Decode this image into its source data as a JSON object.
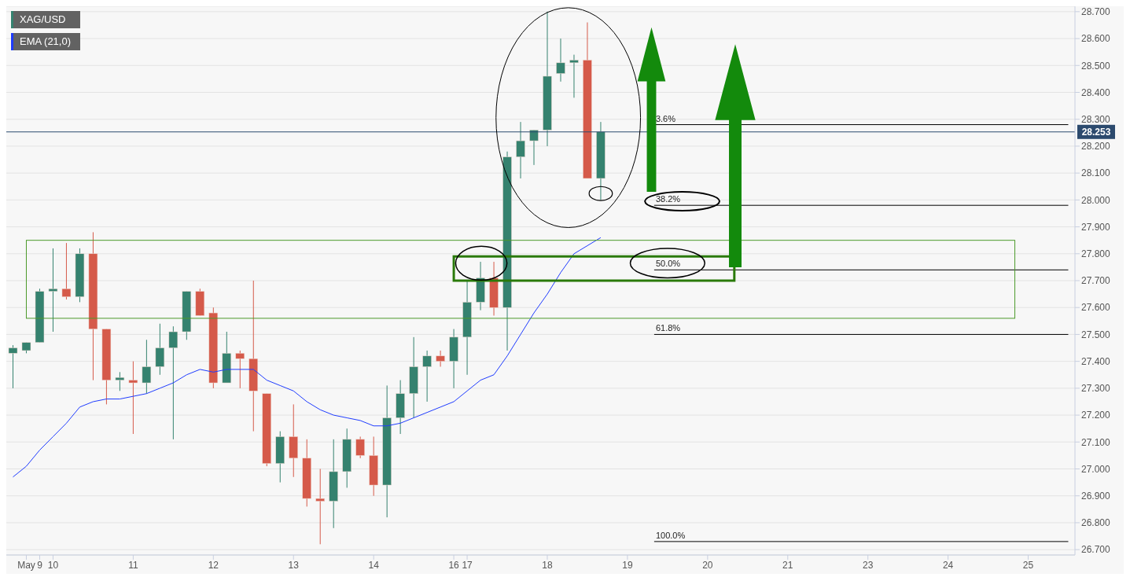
{
  "chart_data": {
    "type": "candlestick",
    "categories": [
      null,
      "May",
      "9",
      "10",
      null,
      null,
      null,
      null,
      null,
      "11",
      null,
      null,
      null,
      null,
      null,
      "12",
      null,
      null,
      null,
      null,
      null,
      "13",
      null,
      null,
      null,
      null,
      null,
      "14",
      null,
      null,
      null,
      null,
      null,
      "16",
      "17",
      null,
      null,
      null,
      null,
      null,
      "18",
      null,
      null,
      null,
      null,
      null,
      "19",
      null,
      null,
      null,
      null,
      null,
      "20",
      null,
      null,
      null,
      null,
      null,
      "21",
      null,
      null,
      null,
      null,
      null,
      "23",
      null,
      null,
      null,
      null,
      null,
      "24",
      null,
      null,
      null,
      null,
      null,
      "25",
      null,
      null,
      null
    ],
    "ylim": [
      26.68,
      28.72
    ],
    "yticks": [
      {
        "value": 26.7,
        "label": "26.700"
      },
      {
        "value": 26.8,
        "label": "26.800"
      },
      {
        "value": 26.9,
        "label": "26.900"
      },
      {
        "value": 27.0,
        "label": "27.000"
      },
      {
        "value": 27.1,
        "label": "27.100"
      },
      {
        "value": 27.2,
        "label": "27.200"
      },
      {
        "value": 27.3,
        "label": "27.300"
      },
      {
        "value": 27.4,
        "label": "27.400"
      },
      {
        "value": 27.5,
        "label": "27.500"
      },
      {
        "value": 27.6,
        "label": "27.600"
      },
      {
        "value": 27.7,
        "label": "27.700"
      },
      {
        "value": 27.8,
        "label": "27.800"
      },
      {
        "value": 27.9,
        "label": "27.900"
      },
      {
        "value": 28.0,
        "label": "28.000"
      },
      {
        "value": 28.1,
        "label": "28.100"
      },
      {
        "value": 28.2,
        "label": "28.200"
      },
      {
        "value": 28.3,
        "label": "28.300"
      },
      {
        "value": 28.4,
        "label": "28.400"
      },
      {
        "value": 28.5,
        "label": "28.500"
      },
      {
        "value": 28.6,
        "label": "28.600"
      },
      {
        "value": 28.7,
        "label": "28.700"
      }
    ],
    "grid": "y",
    "legend": "top left",
    "marker": "none",
    "series": [
      {
        "name": "XAG/USD",
        "color": "#35826f",
        "ohlc": [
          [
            27.43,
            27.46,
            27.3,
            27.45
          ],
          [
            27.44,
            27.47,
            27.43,
            27.47
          ],
          [
            27.47,
            27.67,
            27.47,
            27.66
          ],
          [
            27.66,
            27.82,
            27.51,
            27.67
          ],
          [
            27.67,
            27.84,
            27.63,
            27.64
          ],
          [
            27.64,
            27.82,
            27.62,
            27.8
          ],
          [
            27.8,
            27.88,
            27.33,
            27.52
          ],
          [
            27.52,
            27.52,
            27.24,
            27.33
          ],
          [
            27.33,
            27.36,
            27.29,
            27.34
          ],
          [
            27.33,
            27.4,
            27.13,
            27.32
          ],
          [
            27.32,
            27.48,
            27.28,
            27.38
          ],
          [
            27.38,
            27.54,
            27.35,
            27.45
          ],
          [
            27.45,
            27.53,
            27.11,
            27.51
          ],
          [
            27.51,
            27.66,
            27.48,
            27.66
          ],
          [
            27.66,
            27.67,
            27.57,
            27.57
          ],
          [
            27.58,
            27.6,
            27.3,
            27.32
          ],
          [
            27.32,
            27.51,
            27.32,
            27.43
          ],
          [
            27.43,
            27.44,
            27.3,
            27.41
          ],
          [
            27.41,
            27.7,
            27.14,
            27.29
          ],
          [
            27.28,
            27.28,
            27.01,
            27.02
          ],
          [
            27.02,
            27.14,
            26.95,
            27.12
          ],
          [
            27.12,
            27.24,
            26.97,
            27.04
          ],
          [
            27.04,
            27.11,
            26.86,
            26.89
          ],
          [
            26.89,
            27.0,
            26.72,
            26.88
          ],
          [
            26.88,
            27.11,
            26.78,
            26.99
          ],
          [
            26.99,
            27.15,
            26.93,
            27.11
          ],
          [
            27.11,
            27.12,
            27.04,
            27.05
          ],
          [
            27.05,
            27.12,
            26.9,
            26.94
          ],
          [
            26.94,
            27.31,
            26.82,
            27.19
          ],
          [
            27.19,
            27.33,
            27.13,
            27.28
          ],
          [
            27.28,
            27.49,
            27.19,
            27.38
          ],
          [
            27.38,
            27.44,
            27.25,
            27.42
          ],
          [
            27.42,
            27.44,
            27.38,
            27.4
          ],
          [
            27.4,
            27.52,
            27.3,
            27.49
          ],
          [
            27.49,
            27.7,
            27.35,
            27.62
          ],
          [
            27.62,
            27.77,
            27.59,
            27.71
          ],
          [
            27.71,
            27.77,
            27.57,
            27.6
          ],
          [
            27.6,
            28.18,
            27.44,
            28.16
          ],
          [
            28.16,
            28.29,
            28.08,
            28.22
          ],
          [
            28.22,
            28.26,
            28.13,
            28.26
          ],
          [
            28.26,
            28.7,
            28.2,
            28.46
          ],
          [
            28.47,
            28.6,
            28.44,
            28.51
          ],
          [
            28.51,
            28.54,
            28.38,
            28.52
          ],
          [
            28.52,
            28.66,
            28.08,
            28.08
          ],
          [
            28.08,
            28.29,
            28.0,
            28.253
          ],
          null,
          null,
          null,
          null,
          null,
          null,
          null,
          null,
          null,
          null,
          null,
          null,
          null,
          null,
          null,
          null,
          null,
          null,
          null,
          null,
          null,
          null,
          null,
          null,
          null,
          null,
          null,
          null,
          null,
          null,
          null,
          null,
          null,
          null,
          null
        ],
        "colors": [
          "#35826f",
          "#35826f",
          "#35826f",
          "#35826f",
          "#d55a4a",
          "#35826f",
          "#d55a4a",
          "#d55a4a",
          "#35826f",
          "#d55a4a",
          "#35826f",
          "#35826f",
          "#35826f",
          "#35826f",
          "#d55a4a",
          "#d55a4a",
          "#35826f",
          "#d55a4a",
          "#d55a4a",
          "#d55a4a",
          "#35826f",
          "#d55a4a",
          "#d55a4a",
          "#d55a4a",
          "#35826f",
          "#35826f",
          "#d55a4a",
          "#d55a4a",
          "#35826f",
          "#35826f",
          "#35826f",
          "#35826f",
          "#d55a4a",
          "#35826f",
          "#35826f",
          "#35826f",
          "#d55a4a",
          "#35826f",
          "#35826f",
          "#35826f",
          "#35826f",
          "#35826f",
          "#35826f",
          "#d55a4a",
          "#35826f",
          null,
          null,
          null,
          null,
          null,
          null,
          null,
          null,
          null,
          null,
          null,
          null,
          null,
          null,
          null,
          null,
          null,
          null,
          null,
          null,
          null,
          null,
          null,
          null,
          null,
          null,
          null,
          null,
          null,
          null,
          null,
          null,
          null,
          null,
          null
        ]
      },
      {
        "name": "EMA (21,0)",
        "type": "line",
        "color": "#1f3cff",
        "values": [
          26.97,
          27.01,
          27.07,
          27.12,
          27.17,
          27.23,
          27.25,
          27.26,
          27.26,
          27.27,
          27.28,
          27.3,
          27.32,
          27.35,
          27.37,
          27.36,
          27.37,
          27.37,
          27.37,
          27.33,
          27.31,
          27.29,
          27.25,
          27.22,
          27.2,
          27.19,
          27.18,
          27.16,
          27.16,
          27.17,
          27.19,
          27.21,
          27.23,
          27.25,
          27.29,
          27.33,
          27.35,
          27.42,
          27.5,
          27.58,
          27.65,
          27.73,
          27.8,
          27.83,
          27.86,
          null,
          null,
          null,
          null,
          null,
          null,
          null,
          null,
          null,
          null,
          null,
          null,
          null,
          null,
          null,
          null,
          null,
          null,
          null,
          null,
          null,
          null,
          null,
          null,
          null,
          null,
          null,
          null,
          null,
          null,
          null,
          null,
          null,
          null,
          null
        ]
      }
    ],
    "ref_lines": [
      {
        "axis": "y",
        "value": 28.253,
        "label": "28.253",
        "color": "#2c4a6e"
      },
      {
        "axis": "y",
        "value": 28.28,
        "color": "#000000"
      },
      {
        "axis": "y",
        "value": 27.98,
        "color": "#000000"
      },
      {
        "axis": "y",
        "value": 27.74,
        "color": "#000000"
      },
      {
        "axis": "y",
        "value": 27.5,
        "color": "#000000"
      },
      {
        "axis": "y",
        "value": 26.73,
        "color": "#000000"
      }
    ],
    "annotations": [
      {
        "text": "3.6%",
        "y": 28.28
      },
      {
        "text": "38.2%",
        "y": 27.98
      },
      {
        "text": "50.0%",
        "y": 27.74
      },
      {
        "text": "61.8%",
        "y": 27.5
      },
      {
        "text": "100.0%",
        "y": 26.73
      }
    ]
  }
}
